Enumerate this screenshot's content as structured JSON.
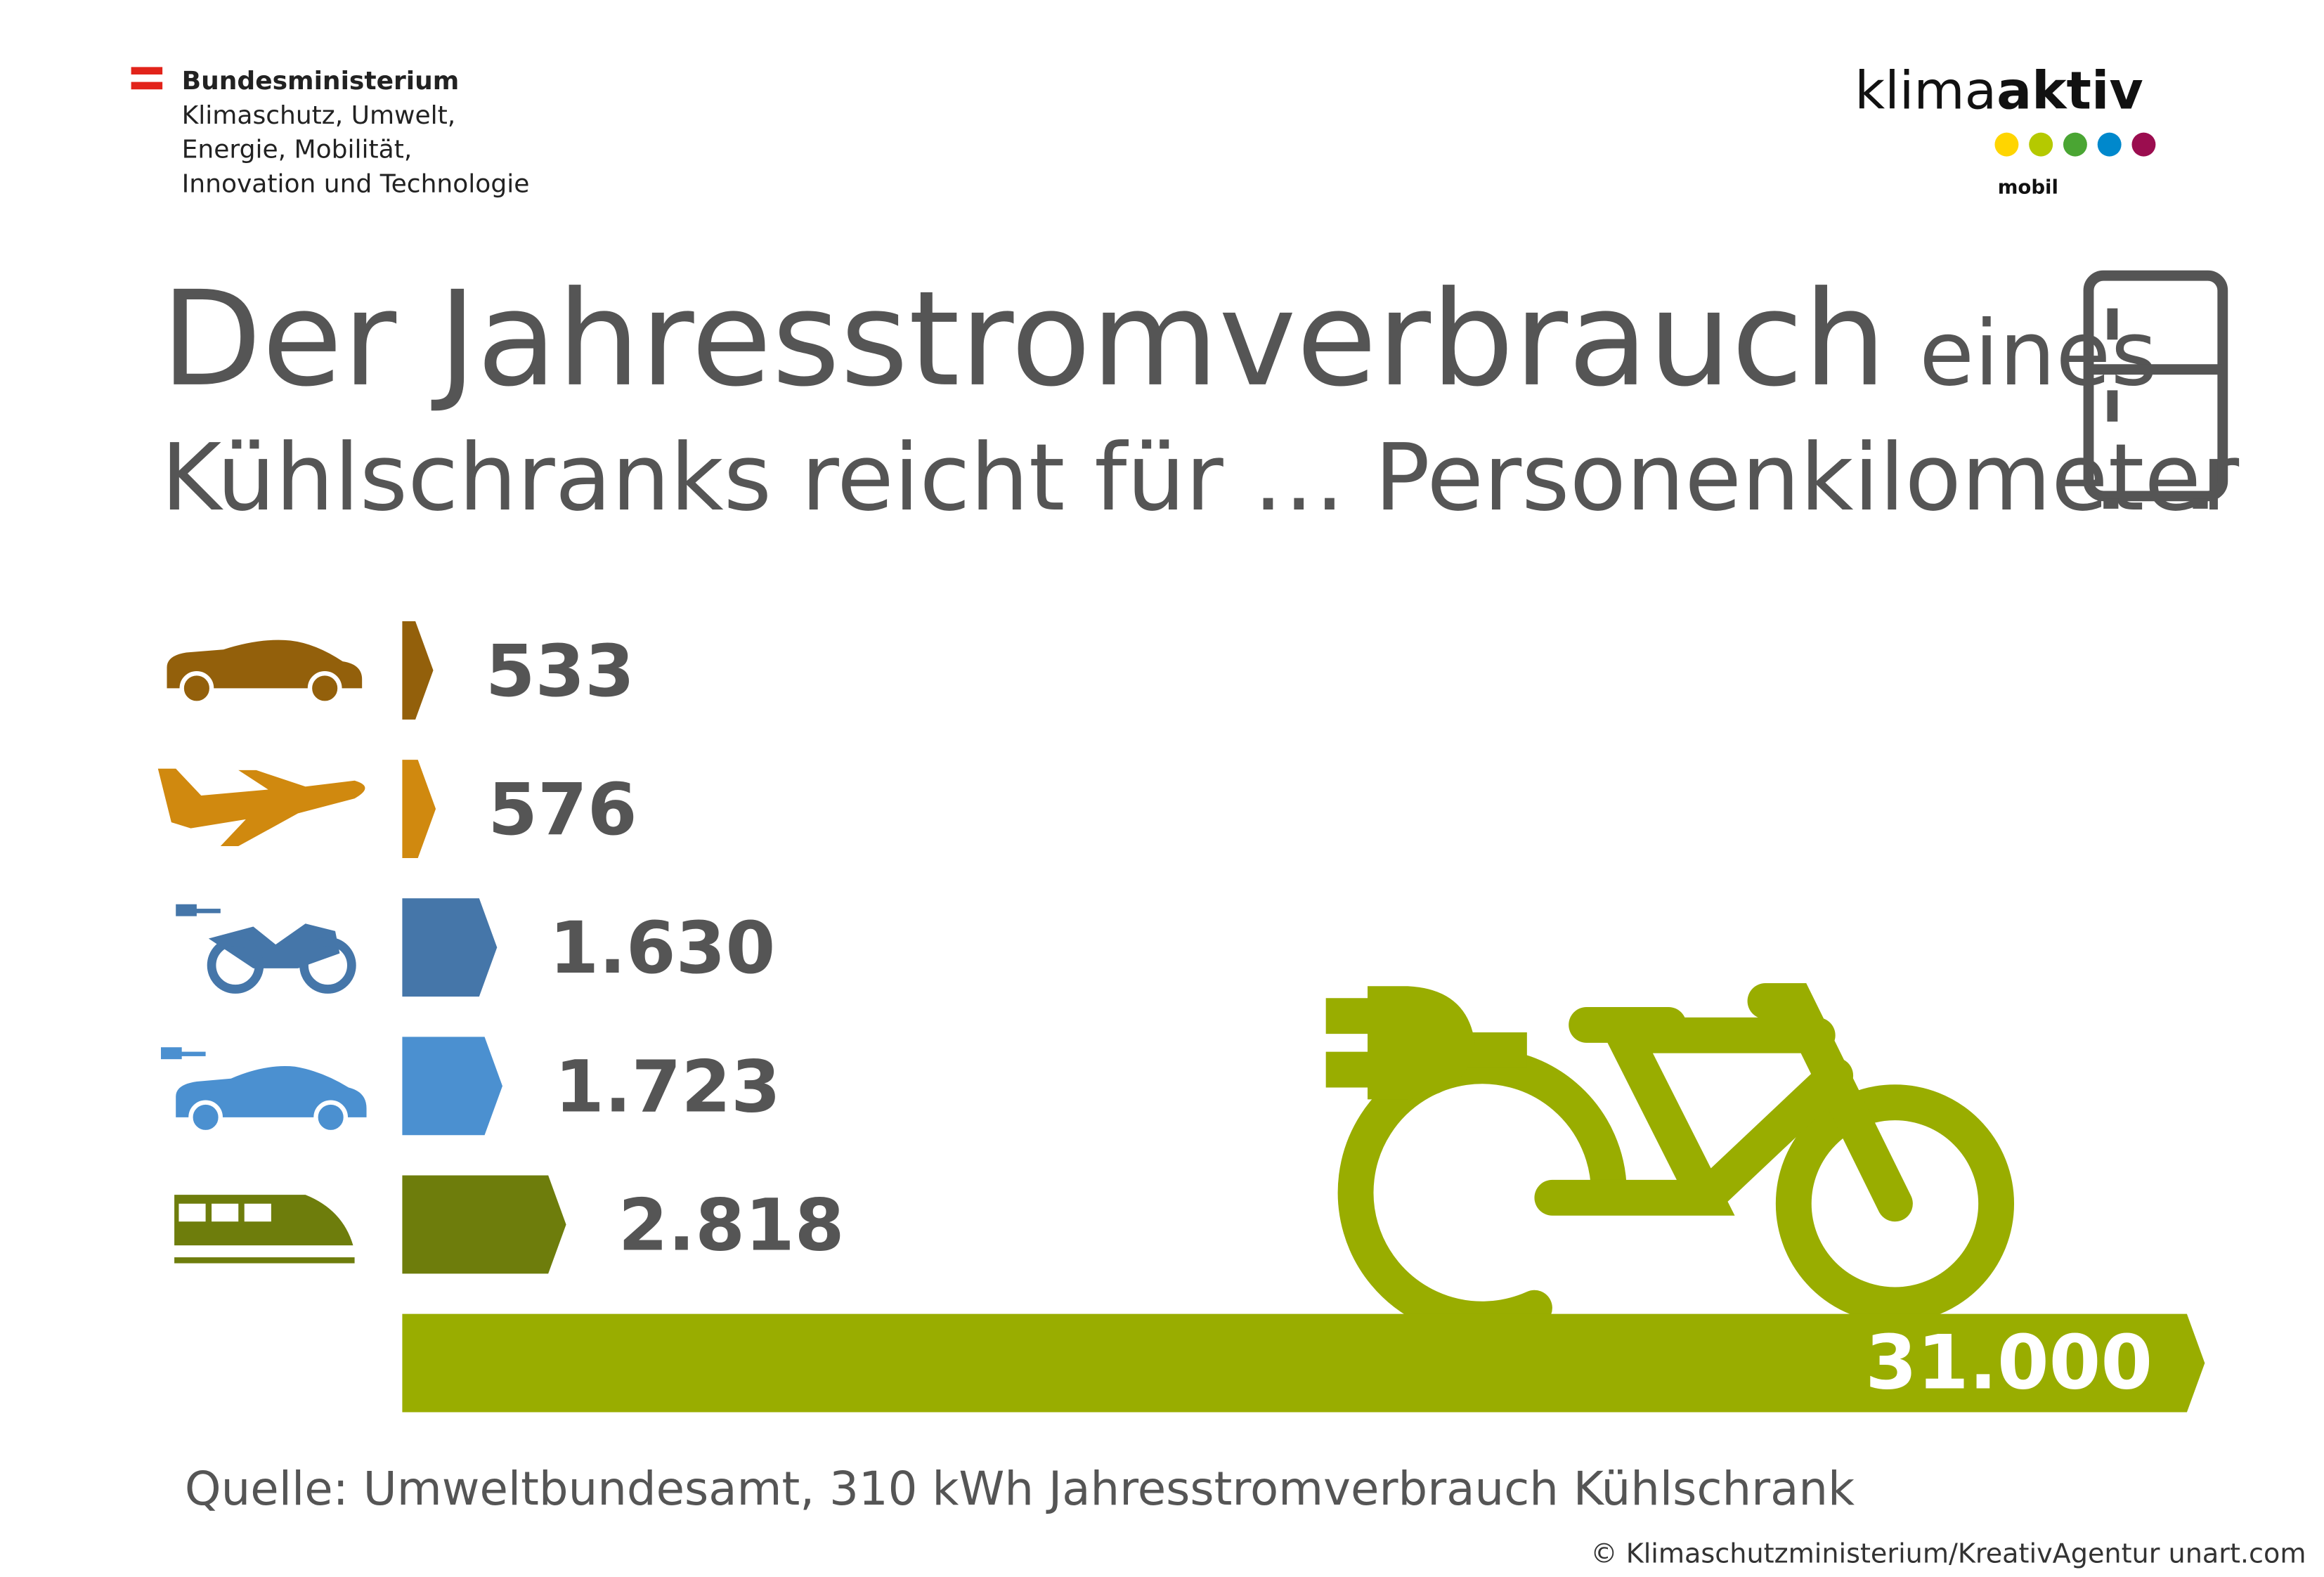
{
  "header": {
    "ministry": [
      "Bundesministerium",
      "Klimaschutz, Umwelt,",
      "Energie, Mobilität,",
      "Innovation und Technologie"
    ],
    "logo": {
      "part1": "klima",
      "part2": "aktiv",
      "sub": "mobil"
    }
  },
  "chart_data": {
    "type": "bar",
    "orientation": "horizontal",
    "title": "Der Jahresstromverbrauch",
    "title_suffix": "eines",
    "subtitle": "Kühlschranks reicht für … Personenkilometer",
    "categories": [
      null,
      null,
      null,
      null,
      null,
      null
    ],
    "values": [
      533,
      576,
      1630,
      1723,
      2818,
      31000
    ],
    "value_labels": [
      "533",
      "576",
      "1.630",
      "1.723",
      "2.818",
      "31.000"
    ],
    "colors": [
      "#93600b",
      "#d0890f",
      "#4576a9",
      "#4b90d0",
      "#6e7d0c",
      "#99ad00"
    ],
    "xlim": [
      0,
      31000
    ]
  },
  "footer": {
    "source": "Quelle: Umweltbundesamt, 310 kWh Jahresstromverbrauch Kühlschrank",
    "copyright": "© Klimaschutzministerium/KreativAgentur unart.com"
  }
}
